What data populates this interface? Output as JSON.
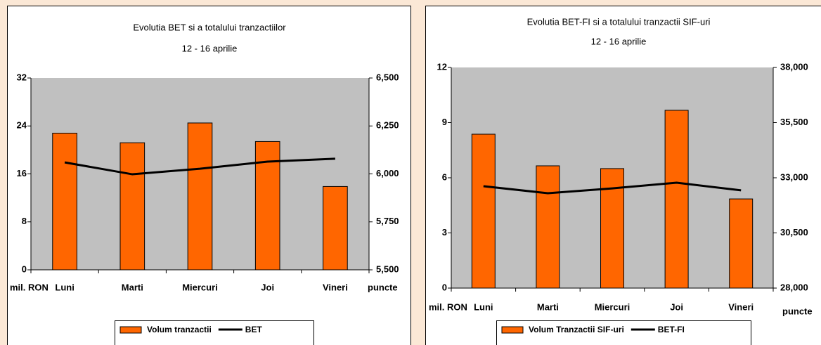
{
  "chart_data": [
    {
      "type": "bar",
      "title": "Evolutia BET si a totalului tranzactiilor",
      "subtitle": "12 - 16 aprilie",
      "y_label": "mil. RON",
      "y2_label": "puncte",
      "categories": [
        "Luni",
        "Marti",
        "Miercuri",
        "Joi",
        "Vineri"
      ],
      "series": [
        {
          "name": "Volum tranzactii",
          "type": "bar",
          "color": "#ff6600",
          "values": [
            22.8,
            21.2,
            24.5,
            21.4,
            13.9
          ]
        },
        {
          "name": "BET",
          "type": "line",
          "axis": "y2",
          "color": "#000000",
          "values": [
            6060,
            5998,
            6027,
            6064,
            6079
          ]
        }
      ],
      "ylim": [
        0,
        32
      ],
      "yticks": [
        0,
        8,
        16,
        24,
        32
      ],
      "y2lim": [
        5500,
        6500
      ],
      "y2ticks": [
        {
          "value": 5500,
          "label": "5,500"
        },
        {
          "value": 5750,
          "label": "5,750"
        },
        {
          "value": 6000,
          "label": "6,000"
        },
        {
          "value": 6250,
          "label": "6,250"
        },
        {
          "value": 6500,
          "label": "6,500"
        }
      ],
      "legend": "bottom",
      "plot_background": "#c0c0c0"
    },
    {
      "type": "bar",
      "title": "Evolutia BET-FI si a totalului tranzactii SIF-uri",
      "subtitle": "12 - 16 aprilie",
      "y_label": "mil. RON",
      "y2_label": "puncte",
      "categories": [
        "Luni",
        "Marti",
        "Miercuri",
        "Joi",
        "Vineri"
      ],
      "series": [
        {
          "name": "Volum Tranzactii SIF-uri",
          "type": "bar",
          "color": "#ff6600",
          "values": [
            8.37,
            6.65,
            6.5,
            9.67,
            4.85
          ]
        },
        {
          "name": "BET-FI",
          "type": "line",
          "axis": "y2",
          "color": "#000000",
          "values": [
            32618,
            32300,
            32520,
            32777,
            32430
          ]
        }
      ],
      "ylim": [
        0,
        12
      ],
      "yticks": [
        0,
        3,
        6,
        9,
        12
      ],
      "y2lim": [
        28000,
        38000
      ],
      "y2ticks": [
        {
          "value": 28000,
          "label": "28,000"
        },
        {
          "value": 30500,
          "label": "30,500"
        },
        {
          "value": 33000,
          "label": "33,000"
        },
        {
          "value": 35500,
          "label": "35,500"
        },
        {
          "value": 38000,
          "label": "38,000"
        }
      ],
      "legend": "bottom",
      "plot_background": "#c0c0c0"
    }
  ]
}
